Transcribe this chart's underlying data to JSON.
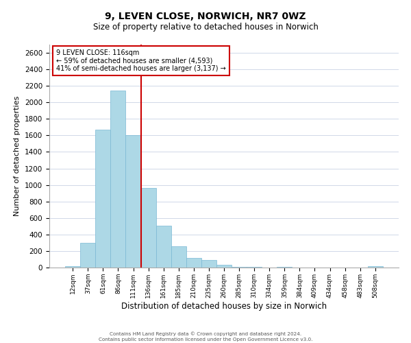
{
  "title": "9, LEVEN CLOSE, NORWICH, NR7 0WZ",
  "subtitle": "Size of property relative to detached houses in Norwich",
  "xlabel": "Distribution of detached houses by size in Norwich",
  "ylabel": "Number of detached properties",
  "footer_line1": "Contains HM Land Registry data © Crown copyright and database right 2024.",
  "footer_line2": "Contains public sector information licensed under the Open Government Licence v3.0.",
  "bin_labels": [
    "12sqm",
    "37sqm",
    "61sqm",
    "86sqm",
    "111sqm",
    "136sqm",
    "161sqm",
    "185sqm",
    "210sqm",
    "235sqm",
    "260sqm",
    "285sqm",
    "310sqm",
    "334sqm",
    "359sqm",
    "384sqm",
    "409sqm",
    "434sqm",
    "458sqm",
    "483sqm",
    "508sqm"
  ],
  "bar_heights": [
    20,
    295,
    1670,
    2140,
    1600,
    965,
    505,
    255,
    120,
    95,
    30,
    5,
    5,
    0,
    5,
    0,
    0,
    0,
    0,
    0,
    20
  ],
  "bar_color": "#add8e6",
  "bar_edge_color": "#7ab8d4",
  "annotation_box_text": "9 LEVEN CLOSE: 116sqm\n← 59% of detached houses are smaller (4,593)\n41% of semi-detached houses are larger (3,137) →",
  "annotation_box_color": "#cc0000",
  "vline_color": "#cc0000",
  "ylim": [
    0,
    2700
  ],
  "yticks": [
    0,
    200,
    400,
    600,
    800,
    1000,
    1200,
    1400,
    1600,
    1800,
    2000,
    2200,
    2400,
    2600
  ],
  "background_color": "#ffffff",
  "grid_color": "#d0d8e8",
  "title_fontsize": 10,
  "subtitle_fontsize": 8.5,
  "ylabel_fontsize": 8,
  "xlabel_fontsize": 8.5
}
